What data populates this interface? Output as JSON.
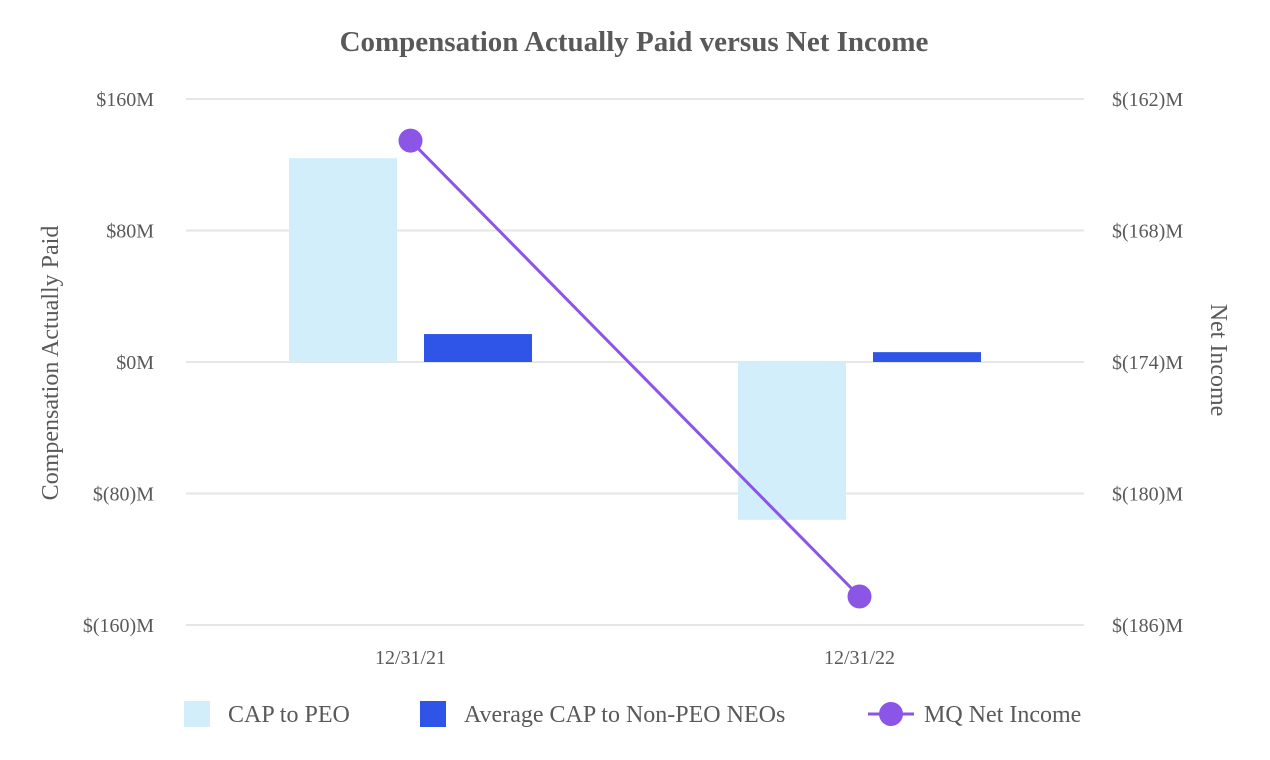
{
  "chart_data": {
    "type": "bar",
    "title": "Compensation Actually Paid versus Net Income",
    "categories": [
      "12/31/21",
      "12/31/22"
    ],
    "left_axis": {
      "label": "Compensation Actually Paid",
      "range": [
        -160,
        160
      ],
      "ticks": [
        160,
        80,
        0,
        -80,
        -160
      ],
      "tick_labels": [
        "$160M",
        "$80M",
        "$0M",
        "$(80)M",
        "$(160)M"
      ],
      "units": "$M"
    },
    "right_axis": {
      "label": "Net Income",
      "range": [
        -186,
        -162
      ],
      "ticks": [
        -162,
        -168,
        -174,
        -180,
        -186
      ],
      "tick_labels": [
        "$(162)M",
        "$(168)M",
        "$(174)M",
        "$(180)M",
        "$(186)M"
      ],
      "units": "$M"
    },
    "series": [
      {
        "name": "CAP to PEO",
        "type": "bar",
        "axis": "left",
        "color": "#d2eefb",
        "values": [
          124,
          -96
        ]
      },
      {
        "name": "Average CAP to Non-PEO NEOs",
        "type": "bar",
        "axis": "left",
        "color": "#2f55e8",
        "values": [
          17,
          6
        ]
      },
      {
        "name": "MQ Net Income",
        "type": "line",
        "axis": "right",
        "color": "#8b55e6",
        "values": [
          -163.9,
          -184.7
        ]
      }
    ],
    "grid": true,
    "legend_position": "bottom"
  }
}
